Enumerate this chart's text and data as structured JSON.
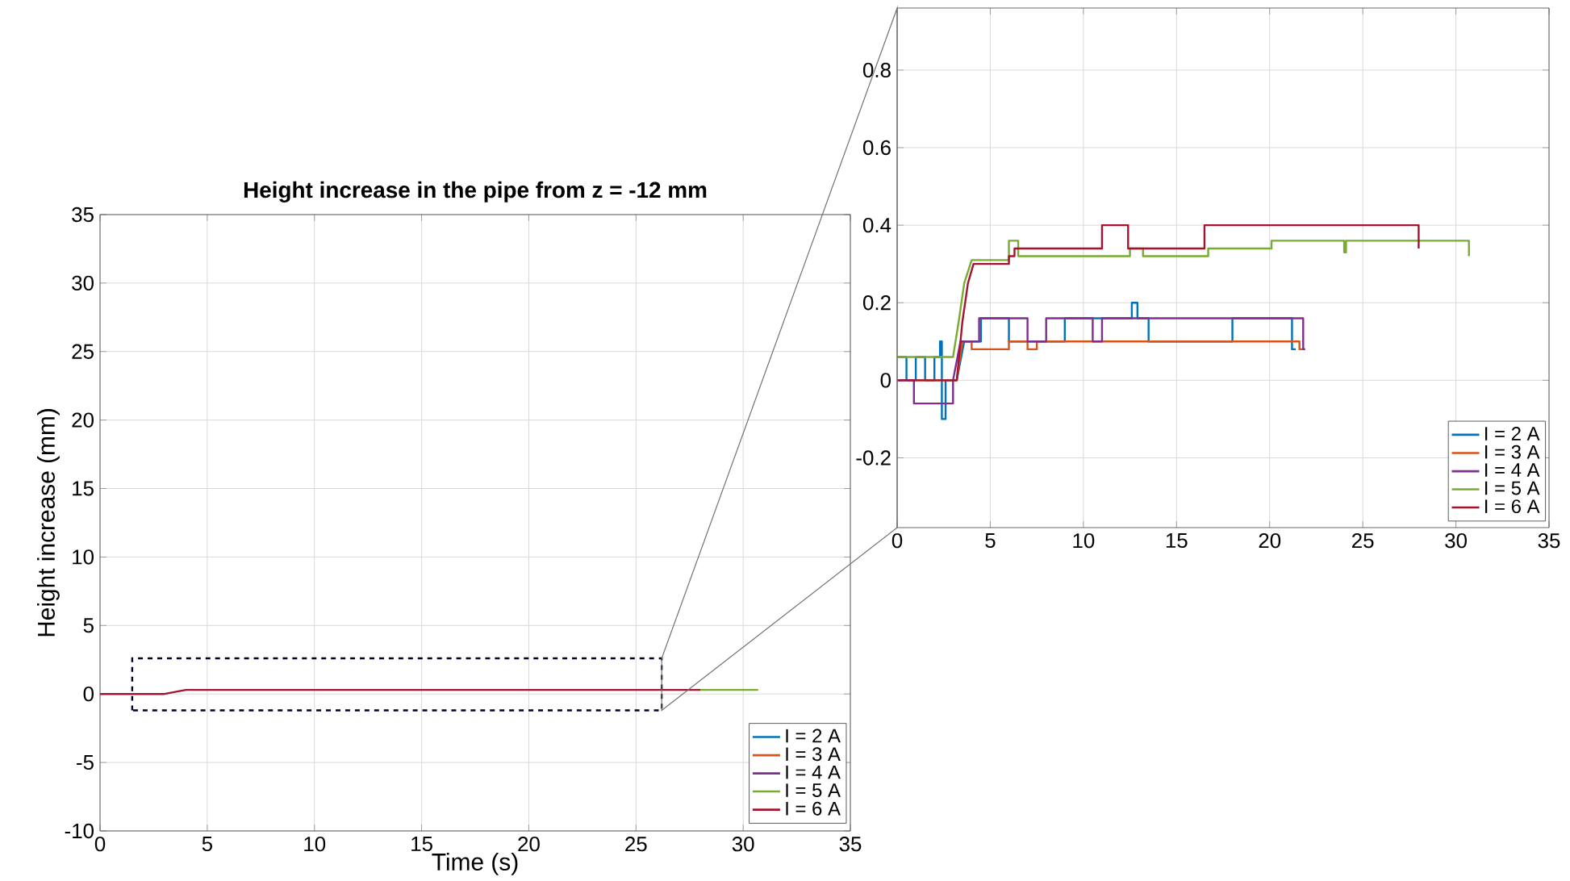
{
  "chart_data": [
    {
      "type": "line",
      "title": "Height increase in the pipe from z = -12 mm",
      "xlabel": "Time (s)",
      "ylabel": "Height increase (mm)",
      "xlim": [
        0,
        35
      ],
      "ylim": [
        -10,
        35
      ],
      "xticks": [
        0,
        5,
        10,
        15,
        20,
        25,
        30,
        35
      ],
      "yticks": [
        -10,
        -5,
        0,
        5,
        10,
        15,
        20,
        25,
        30,
        35
      ],
      "grid": true,
      "legend": "bottom right",
      "series": [
        {
          "name": "I = 2 A",
          "color": "#0072bd"
        },
        {
          "name": "I = 3 A",
          "color": "#d95319"
        },
        {
          "name": "I = 4 A",
          "color": "#7e2f8e"
        },
        {
          "name": "I = 5 A",
          "color": "#77ac30",
          "x": [
            28,
            30.7
          ],
          "values": [
            0.3,
            0.3
          ]
        },
        {
          "name": "I = 6 A",
          "color": "#a2142f",
          "x": [
            0,
            3,
            4,
            28
          ],
          "values": [
            0,
            0,
            0.3,
            0.3
          ]
        }
      ]
    },
    {
      "type": "line",
      "xlim": [
        0,
        35
      ],
      "ylim": [
        -0.38,
        0.96
      ],
      "xticks": [
        0,
        5,
        10,
        15,
        20,
        25,
        30,
        35
      ],
      "yticks": [
        -0.2,
        0,
        0.2,
        0.4,
        0.6,
        0.8
      ],
      "grid": true,
      "legend": "bottom right",
      "series": [
        {
          "name": "I = 2 A",
          "color": "#0072bd",
          "x": [
            0,
            0.5,
            0.5,
            1,
            1,
            1.5,
            1.5,
            2,
            2,
            2.3,
            2.3,
            2.4,
            2.4,
            2.6,
            2.6,
            3.2,
            3.6,
            4.5,
            4.5,
            6,
            6,
            9,
            9,
            12.6,
            12.6,
            12.9,
            12.9,
            13.5,
            13.5,
            18,
            18,
            21.2,
            21.2,
            21.4
          ],
          "values": [
            0.06,
            0.06,
            0,
            0,
            0.06,
            0.06,
            0,
            0,
            0.06,
            0.06,
            0.1,
            0.1,
            -0.1,
            -0.1,
            0,
            0,
            0.1,
            0.1,
            0.16,
            0.16,
            0.1,
            0.1,
            0.16,
            0.16,
            0.2,
            0.2,
            0.16,
            0.16,
            0.1,
            0.1,
            0.16,
            0.16,
            0.08,
            0.08
          ]
        },
        {
          "name": "I = 3 A",
          "color": "#d95319",
          "x": [
            0,
            3.2,
            3.5,
            4,
            4,
            6,
            6,
            7,
            7,
            7.5,
            7.5,
            21.6,
            21.6,
            21.9
          ],
          "values": [
            0,
            0,
            0.1,
            0.1,
            0.08,
            0.08,
            0.1,
            0.1,
            0.08,
            0.08,
            0.1,
            0.1,
            0.08,
            0.08
          ]
        },
        {
          "name": "I = 4 A",
          "color": "#7e2f8e",
          "x": [
            0,
            0.9,
            0.9,
            3,
            3,
            3.4,
            4.4,
            4.4,
            7,
            7,
            8,
            8,
            10.5,
            10.5,
            11,
            11,
            21.8,
            21.8,
            21.9
          ],
          "values": [
            0,
            0,
            -0.06,
            -0.06,
            0,
            0.1,
            0.1,
            0.16,
            0.16,
            0.1,
            0.1,
            0.16,
            0.16,
            0.1,
            0.1,
            0.16,
            0.16,
            0.08,
            0.08
          ]
        },
        {
          "name": "I = 5 A",
          "color": "#77ac30",
          "x": [
            0,
            3,
            3.3,
            3.6,
            4,
            6,
            6,
            6.5,
            6.5,
            12.5,
            12.5,
            13.2,
            13.2,
            16.7,
            16.7,
            20.1,
            20.1,
            24,
            24,
            24.1,
            24.1,
            30.7,
            30.7
          ],
          "values": [
            0.06,
            0.06,
            0.15,
            0.25,
            0.31,
            0.31,
            0.36,
            0.36,
            0.32,
            0.32,
            0.34,
            0.34,
            0.32,
            0.32,
            0.34,
            0.34,
            0.36,
            0.36,
            0.33,
            0.33,
            0.36,
            0.36,
            0.32
          ]
        },
        {
          "name": "I = 6 A",
          "color": "#a2142f",
          "x": [
            0,
            3.2,
            3.5,
            3.8,
            4.1,
            6,
            6,
            6.3,
            6.3,
            11,
            11,
            12.4,
            12.4,
            16.5,
            16.5,
            28,
            28
          ],
          "values": [
            0,
            0,
            0.15,
            0.25,
            0.3,
            0.3,
            0.32,
            0.32,
            0.34,
            0.34,
            0.4,
            0.4,
            0.34,
            0.34,
            0.4,
            0.4,
            0.34
          ]
        }
      ]
    }
  ]
}
